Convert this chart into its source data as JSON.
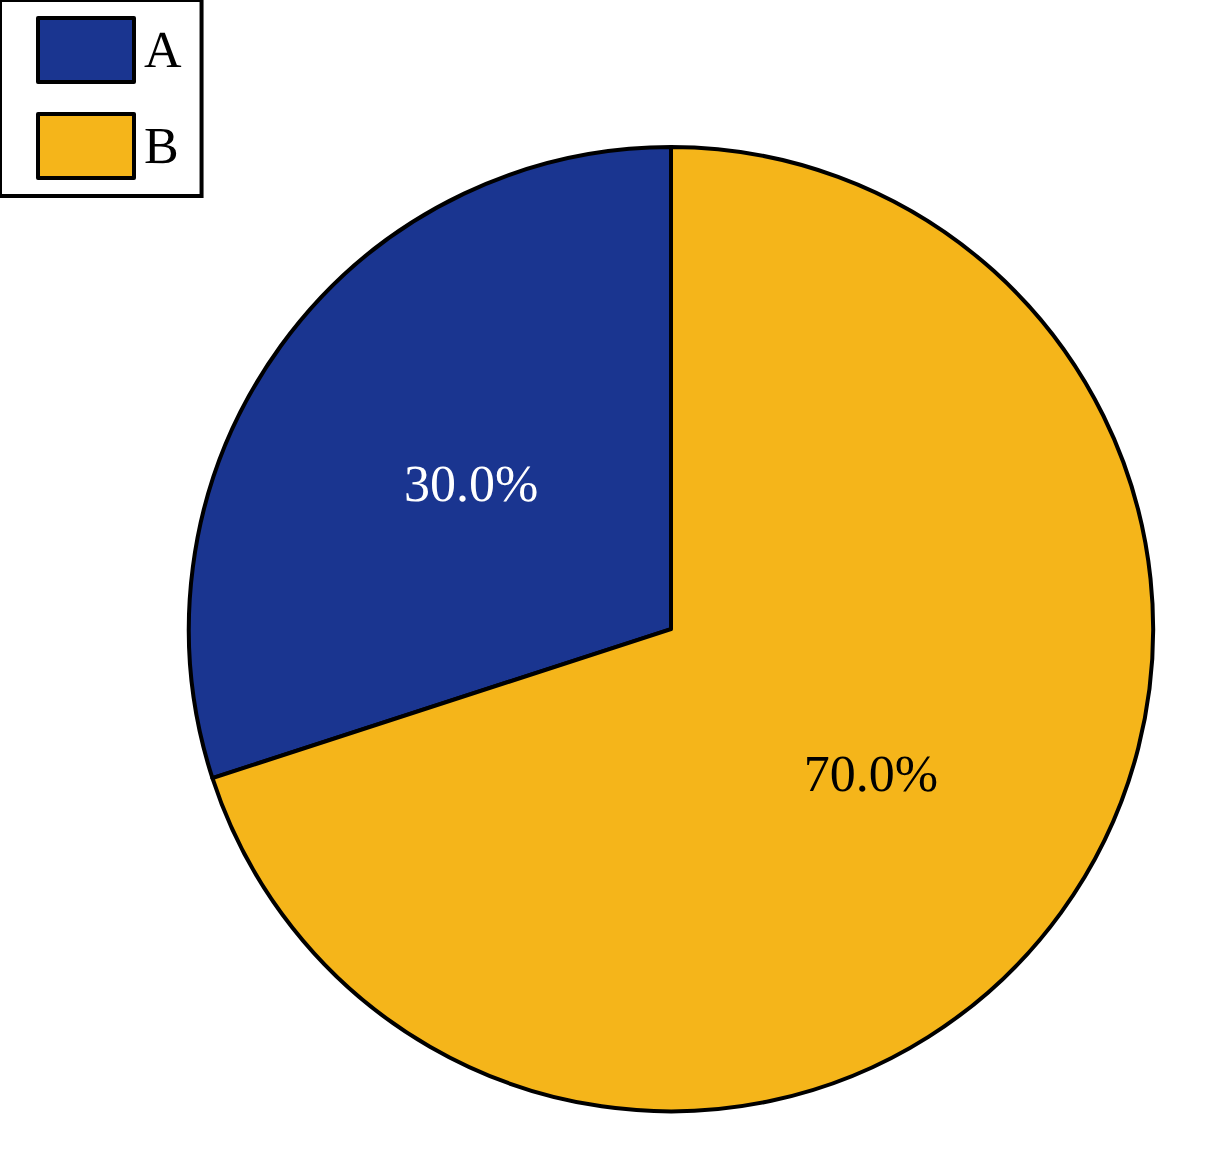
{
  "chart_data": {
    "type": "pie",
    "categories": [
      "A",
      "B"
    ],
    "values": [
      30,
      70
    ],
    "colors": [
      "#1a3590",
      "#f5b51a"
    ],
    "value_labels": [
      "30.0%",
      "70.0%"
    ],
    "legend": "top left"
  }
}
